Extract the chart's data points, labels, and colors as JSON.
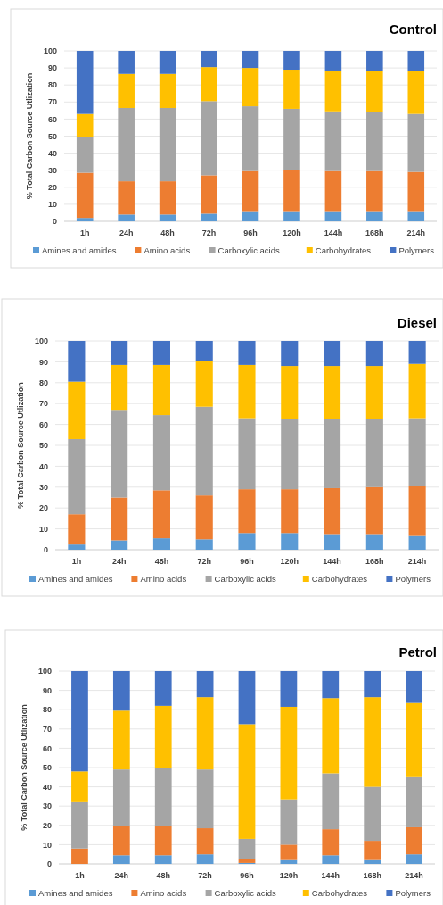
{
  "chart_data": [
    {
      "type": "bar",
      "title": "Control",
      "ylabel": "% Total Carbon Source Utlization",
      "stacked": true,
      "categories": [
        "1h",
        "24h",
        "48h",
        "72h",
        "96h",
        "120h",
        "144h",
        "168h",
        "214h"
      ],
      "ylim": [
        0,
        100
      ],
      "yticks": [
        0,
        10,
        20,
        30,
        40,
        50,
        60,
        70,
        80,
        90,
        100
      ],
      "grid": "y",
      "legend": "bottom",
      "series": [
        {
          "name": "Amines and amides",
          "color": "#5b9bd5",
          "values": [
            2,
            4,
            4,
            4.5,
            6,
            6,
            6,
            6,
            6
          ]
        },
        {
          "name": "Amino acids",
          "color": "#ed7d31",
          "values": [
            26.5,
            19.5,
            19.5,
            22.5,
            23.5,
            24,
            23.5,
            23.5,
            23
          ]
        },
        {
          "name": "Carboxylic acids",
          "color": "#a5a5a5",
          "values": [
            21,
            43,
            43,
            43.5,
            38,
            36,
            35,
            34.5,
            34
          ]
        },
        {
          "name": "Carbohydrates",
          "color": "#ffc000",
          "values": [
            13.5,
            20,
            20,
            20,
            22.5,
            23,
            24,
            24,
            25
          ]
        },
        {
          "name": "Polymers",
          "color": "#4472c4",
          "values": [
            37,
            13.5,
            13.5,
            9.5,
            10,
            11,
            11.5,
            12,
            12
          ]
        }
      ]
    },
    {
      "type": "bar",
      "title": "Diesel",
      "ylabel": "% Total Carbon Source Utlization",
      "stacked": true,
      "categories": [
        "1h",
        "24h",
        "48h",
        "72h",
        "96h",
        "120h",
        "144h",
        "168h",
        "214h"
      ],
      "ylim": [
        0,
        100
      ],
      "yticks": [
        0,
        10,
        20,
        30,
        40,
        50,
        60,
        70,
        80,
        90,
        100
      ],
      "grid": "y",
      "legend": "bottom",
      "series": [
        {
          "name": "Amines and amides",
          "color": "#5b9bd5",
          "values": [
            2.5,
            4.5,
            5.5,
            5,
            8,
            8,
            7.5,
            7.5,
            7
          ]
        },
        {
          "name": "Amino acids",
          "color": "#ed7d31",
          "values": [
            14.5,
            20.5,
            23,
            21,
            21,
            21,
            22,
            22.5,
            23.5
          ]
        },
        {
          "name": "Carboxylic acids",
          "color": "#a5a5a5",
          "values": [
            36,
            42,
            36,
            42.5,
            34,
            33.5,
            33,
            32.5,
            32.5
          ]
        },
        {
          "name": "Carbohydrates",
          "color": "#ffc000",
          "values": [
            27.5,
            21.5,
            24,
            22,
            25.5,
            25.5,
            25.5,
            25.5,
            26
          ]
        },
        {
          "name": "Polymers",
          "color": "#4472c4",
          "values": [
            19.5,
            11.5,
            11.5,
            9.5,
            11.5,
            12,
            12,
            12,
            11
          ]
        }
      ]
    },
    {
      "type": "bar",
      "title": "Petrol",
      "ylabel": "% Total Carbon Source Utlization",
      "stacked": true,
      "categories": [
        "1h",
        "24h",
        "48h",
        "72h",
        "96h",
        "120h",
        "144h",
        "168h",
        "214h"
      ],
      "ylim": [
        0,
        100
      ],
      "yticks": [
        0,
        10,
        20,
        30,
        40,
        50,
        60,
        70,
        80,
        90,
        100
      ],
      "grid": "y",
      "legend": "bottom",
      "series": [
        {
          "name": "Amines and amides",
          "color": "#5b9bd5",
          "values": [
            0,
            4.5,
            4.5,
            5,
            0.5,
            2,
            4.5,
            2,
            5
          ]
        },
        {
          "name": "Amino acids",
          "color": "#ed7d31",
          "values": [
            8,
            15,
            15,
            13.5,
            2,
            8,
            13.5,
            10,
            14
          ]
        },
        {
          "name": "Carboxylic acids",
          "color": "#a5a5a5",
          "values": [
            24,
            29.5,
            30.5,
            30.5,
            10.5,
            23.5,
            29,
            28,
            26
          ]
        },
        {
          "name": "Carbohydrates",
          "color": "#ffc000",
          "values": [
            16,
            30.5,
            32,
            37.5,
            59.5,
            48,
            39,
            46.5,
            38.5
          ]
        },
        {
          "name": "Polymers",
          "color": "#4472c4",
          "values": [
            52,
            20.5,
            18,
            13.5,
            27.5,
            18.5,
            14,
            13.5,
            16.5
          ]
        }
      ]
    }
  ]
}
